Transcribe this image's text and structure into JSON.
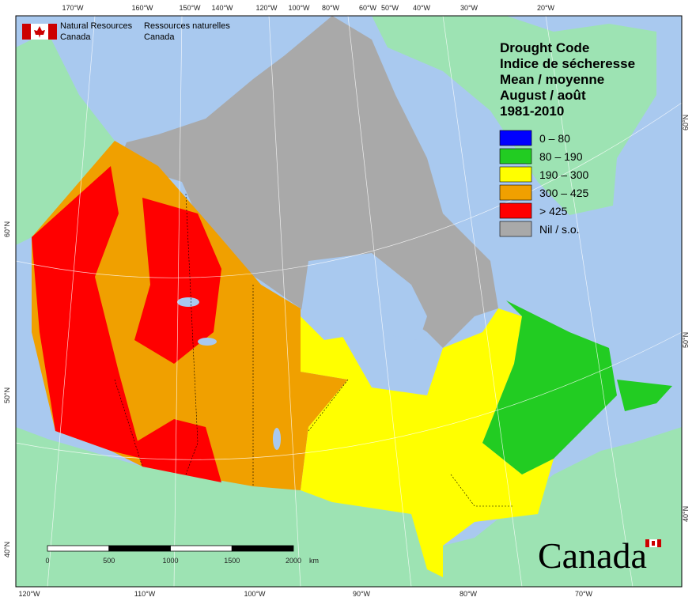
{
  "agency": {
    "en": [
      "Natural Resources",
      "Canada"
    ],
    "fr": [
      "Ressources naturelles",
      "Canada"
    ]
  },
  "legend": {
    "title": [
      "Drought Code",
      "Indice de sécheresse",
      "Mean / moyenne",
      "August / août",
      "1981-2010"
    ],
    "items": [
      {
        "label": "0 – 80",
        "color": "#0000ff"
      },
      {
        "label": "80 – 190",
        "color": "#22cc22"
      },
      {
        "label": "190 – 300",
        "color": "#ffff00"
      },
      {
        "label": "300 – 425",
        "color": "#f0a000"
      },
      {
        "label": "> 425",
        "color": "#ff0000"
      },
      {
        "label": "Nil / s.o.",
        "color": "#a9a9a9"
      }
    ]
  },
  "graticule": {
    "top": [
      "170°W",
      "160°W",
      "150°W",
      "140°W",
      "120°W",
      "100°W",
      "80°W",
      "60°W",
      "50°W",
      "40°W",
      "30°W",
      "20°W"
    ],
    "bottom": [
      "120°W",
      "110°W",
      "100°W",
      "90°W",
      "80°W",
      "70°W"
    ],
    "left": [
      "60°N",
      "50°N",
      "40°N"
    ],
    "right": [
      "60°N",
      "50°N",
      "40°N"
    ]
  },
  "scale_bar": {
    "ticks": [
      0,
      500,
      1000,
      1500,
      2000
    ],
    "unit": "km"
  },
  "wordmark": "Canada"
}
